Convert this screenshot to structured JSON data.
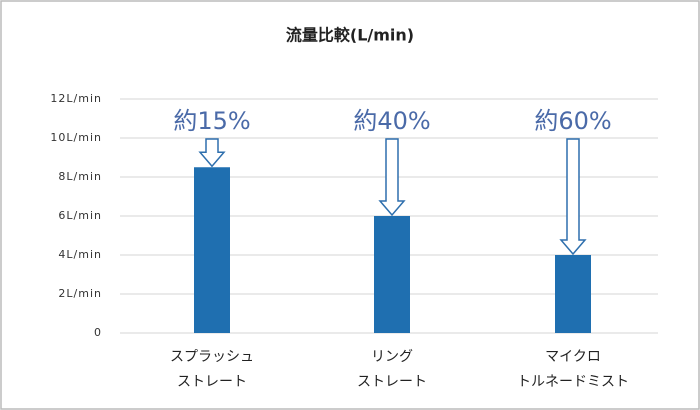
{
  "chart_data": {
    "type": "bar",
    "title": "流量比較(L/min)",
    "categories": [
      [
        "スプラッシュ",
        "ストレート"
      ],
      [
        "リング",
        "ストレート"
      ],
      [
        "マイクロ",
        "トルネードミスト"
      ]
    ],
    "values": [
      8.5,
      6,
      4
    ],
    "annotations": [
      "約15%",
      "約40%",
      "約60%"
    ],
    "color": "#1f6fb0",
    "ylim": [
      0,
      12
    ],
    "yticks": [
      0,
      {
        "value": 2,
        "label": "2L/min"
      },
      {
        "value": 4,
        "label": "4L/min"
      },
      {
        "value": 6,
        "label": "6L/min"
      },
      {
        "value": 8,
        "label": "8L/min"
      },
      {
        "value": 10,
        "label": "10L/min"
      },
      {
        "value": 12,
        "label": "12L/min"
      }
    ],
    "grid": true
  }
}
